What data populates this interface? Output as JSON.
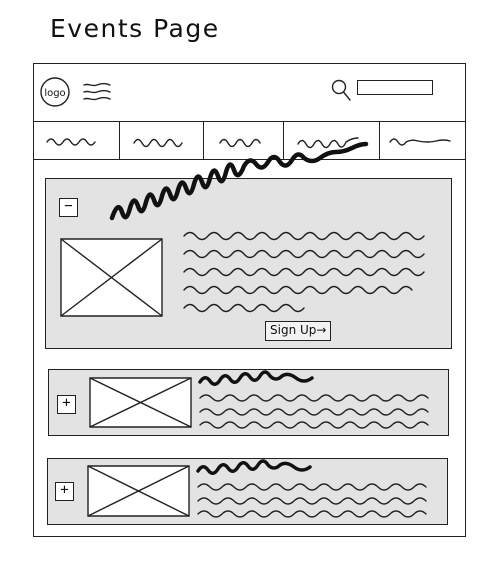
{
  "page": {
    "title": "Events Page"
  },
  "header": {
    "logo_text": "logo",
    "search": {
      "placeholder": ""
    }
  },
  "nav": {
    "tabs": [
      {
        "label": ""
      },
      {
        "label": ""
      },
      {
        "label": ""
      },
      {
        "label": ""
      },
      {
        "label": ""
      }
    ]
  },
  "events": {
    "featured": {
      "toggle_symbol": "−",
      "signup_label": "Sign Up→"
    },
    "items": [
      {
        "toggle_symbol": "+"
      },
      {
        "toggle_symbol": "+"
      }
    ]
  },
  "colors": {
    "card_background": "#e3e3e3",
    "ink": "#222222",
    "page_background": "#ffffff"
  }
}
